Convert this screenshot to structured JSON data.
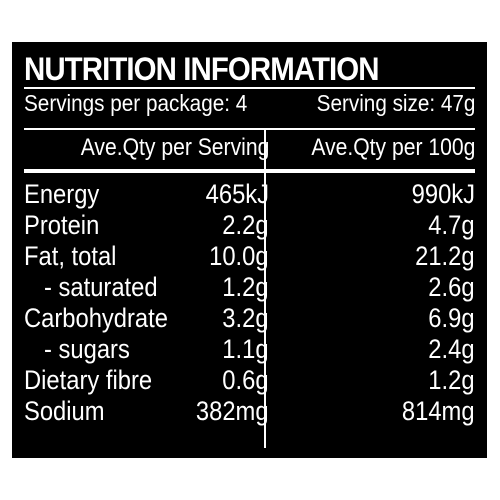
{
  "title": "NUTRITION INFORMATION",
  "servings_per_package": "Servings per package: 4",
  "serving_size": "Serving size: 47g",
  "columns": {
    "per_serving": "Ave.Qty per Serving",
    "per_100g": "Ave.Qty per 100g"
  },
  "rows": [
    {
      "label": "Energy",
      "per_serving": "465kJ",
      "per_100g": "990kJ"
    },
    {
      "label": "Protein",
      "per_serving": "2.2g",
      "per_100g": "4.7g"
    },
    {
      "label": "Fat, total",
      "per_serving": "10.0g",
      "per_100g": "21.2g"
    },
    {
      "label": "- saturated",
      "per_serving": "1.2g",
      "per_100g": "2.6g"
    },
    {
      "label": "Carbohydrate",
      "per_serving": "3.2g",
      "per_100g": "6.9g"
    },
    {
      "label": "- sugars",
      "per_serving": "1.1g",
      "per_100g": "2.4g"
    },
    {
      "label": "Dietary fibre",
      "per_serving": "0.6g",
      "per_100g": "1.2g"
    },
    {
      "label": "Sodium",
      "per_serving": "382mg",
      "per_100g": "814mg"
    }
  ],
  "colors": {
    "background": "#000000",
    "text": "#ffffff"
  }
}
